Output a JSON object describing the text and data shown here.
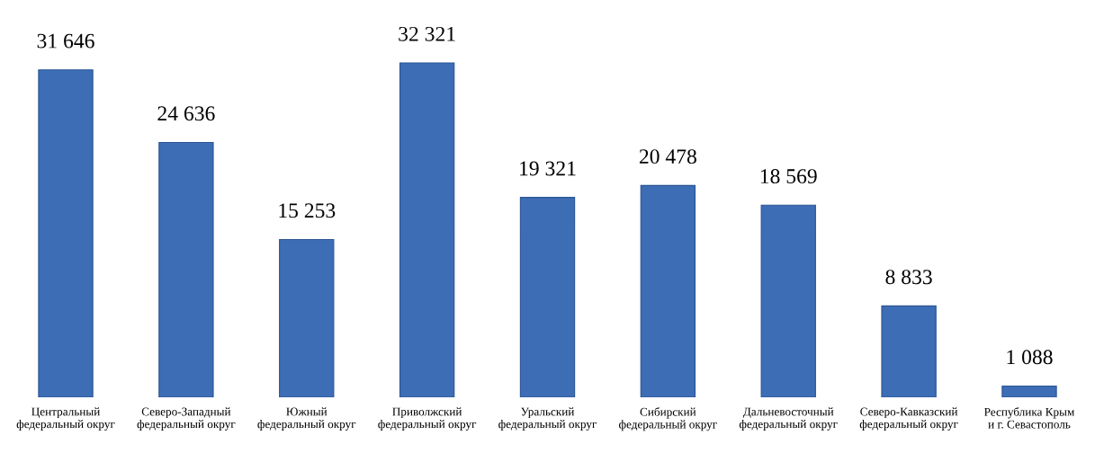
{
  "chart_data": {
    "type": "bar",
    "categories": [
      "Центральный\nфедеральный округ",
      "Северо-Западный\nфедеральный округ",
      "Южный\nфедеральный округ",
      "Приволжский\nфедеральный округ",
      "Уральский\nфедеральный округ",
      "Сибирский\nфедеральный округ",
      "Дальневосточный\nфедеральный округ",
      "Северо-Кавказский\nфедеральный округ",
      "Республика Крым\nи г. Севастополь"
    ],
    "values": [
      31646,
      24636,
      15253,
      32321,
      19321,
      20478,
      18569,
      8833,
      1088
    ],
    "value_labels": [
      "31 646",
      "24 636",
      "15 253",
      "32 321",
      "19 321",
      "20 478",
      "18 569",
      "8 833",
      "1 088"
    ],
    "color": "#3d6db4",
    "grid": false,
    "legend": false
  }
}
